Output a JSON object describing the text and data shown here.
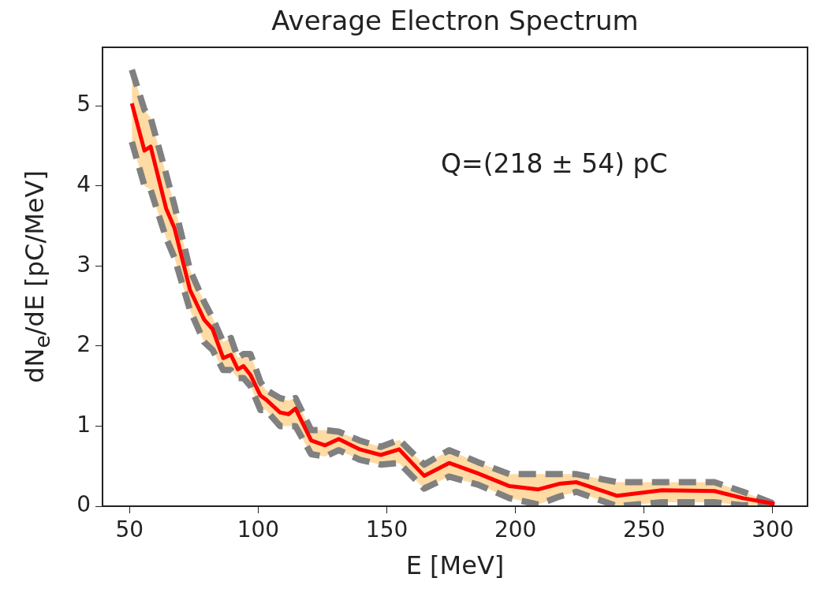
{
  "chart_data": {
    "type": "line",
    "title": "Average Electron Spectrum",
    "xlabel": "E [MeV]",
    "ylabel": "dN$_{e}$/dE [pC/MeV]",
    "annotations": [
      "Q=(218 ± 54) pC"
    ],
    "xlim": [
      39.5,
      313.5
    ],
    "xticks": [
      50,
      100,
      150,
      200,
      250,
      300
    ],
    "ylim": [
      0,
      5.73
    ],
    "yticks": [
      0,
      1,
      2,
      3,
      4,
      5
    ],
    "grid": false,
    "legend": false,
    "marker": "none",
    "line_style": "solid",
    "series": [
      {
        "color": "#ff0000",
        "x": [
          50.9,
          55.8,
          58.2,
          64.2,
          67.5,
          73.5,
          79.0,
          82.3,
          86.4,
          89.4,
          92.1,
          94.3,
          97.0,
          100.9,
          103.1,
          108.5,
          111.8,
          114.5,
          120.6,
          126.0,
          131.3,
          139.5,
          147.6,
          154.8,
          164.5,
          174.2,
          185.4,
          197.7,
          208.9,
          217.0,
          223.7,
          239.5,
          256.9,
          277.3,
          288.5,
          300.7
        ],
        "values": [
          5.03,
          4.44,
          4.49,
          3.72,
          3.47,
          2.7,
          2.33,
          2.21,
          1.85,
          1.89,
          1.71,
          1.75,
          1.64,
          1.38,
          1.33,
          1.17,
          1.15,
          1.22,
          0.82,
          0.76,
          0.84,
          0.71,
          0.64,
          0.71,
          0.38,
          0.54,
          0.41,
          0.25,
          0.21,
          0.28,
          0.3,
          0.13,
          0.2,
          0.19,
          0.1,
          0.03
        ],
        "upper": [
          5.45,
          4.95,
          4.85,
          4.15,
          3.75,
          2.95,
          2.55,
          2.35,
          2.05,
          2.1,
          1.85,
          1.9,
          1.9,
          1.55,
          1.45,
          1.35,
          1.32,
          1.35,
          0.95,
          0.95,
          0.93,
          0.82,
          0.74,
          0.83,
          0.52,
          0.7,
          0.55,
          0.4,
          0.4,
          0.4,
          0.4,
          0.3,
          0.3,
          0.3,
          0.18,
          0.03
        ],
        "lower": [
          4.55,
          4.0,
          3.95,
          3.35,
          3.1,
          2.45,
          2.05,
          1.95,
          1.7,
          1.7,
          1.6,
          1.6,
          1.5,
          1.2,
          1.2,
          1.0,
          1.0,
          1.0,
          0.65,
          0.62,
          0.7,
          0.58,
          0.52,
          0.54,
          0.22,
          0.37,
          0.27,
          0.1,
          0.02,
          0.12,
          0.18,
          0.0,
          0.05,
          0.05,
          0.01,
          0.02
        ]
      },
      {
        "color": "#808080",
        "line_style": "dashed",
        "x": [
          50.9,
          55.8,
          58.2,
          64.2,
          67.5,
          73.5,
          79.0,
          82.3,
          86.4,
          89.4,
          92.1,
          94.3,
          97.0,
          100.9,
          103.1,
          108.5,
          111.8,
          114.5,
          120.6,
          126.0,
          131.3,
          139.5,
          147.6,
          154.8,
          164.5,
          174.2,
          185.4,
          197.7,
          208.9,
          217.0,
          223.7,
          239.5,
          256.9,
          277.3,
          288.5,
          300.7
        ],
        "values": [
          5.45,
          4.95,
          4.85,
          4.15,
          3.75,
          2.95,
          2.55,
          2.35,
          2.05,
          2.1,
          1.85,
          1.9,
          1.9,
          1.55,
          1.45,
          1.35,
          1.32,
          1.35,
          0.95,
          0.95,
          0.93,
          0.82,
          0.74,
          0.83,
          0.52,
          0.7,
          0.55,
          0.4,
          0.4,
          0.4,
          0.4,
          0.3,
          0.3,
          0.3,
          0.18,
          0.03
        ]
      },
      {
        "color": "#808080",
        "line_style": "dashed",
        "x": [
          50.9,
          55.8,
          58.2,
          64.2,
          67.5,
          73.5,
          79.0,
          82.3,
          86.4,
          89.4,
          92.1,
          94.3,
          97.0,
          100.9,
          103.1,
          108.5,
          111.8,
          114.5,
          120.6,
          126.0,
          131.3,
          139.5,
          147.6,
          154.8,
          164.5,
          174.2,
          185.4,
          197.7,
          208.9,
          217.0,
          223.7,
          239.5,
          256.9,
          277.3,
          288.5,
          300.7
        ],
        "values": [
          4.55,
          4.0,
          3.95,
          3.35,
          3.1,
          2.45,
          2.05,
          1.95,
          1.7,
          1.7,
          1.6,
          1.6,
          1.5,
          1.2,
          1.2,
          1.0,
          1.0,
          1.0,
          0.65,
          0.62,
          0.7,
          0.58,
          0.52,
          0.54,
          0.22,
          0.37,
          0.27,
          0.1,
          0.02,
          0.12,
          0.18,
          0.0,
          0.05,
          0.05,
          0.01,
          0.02
        ]
      }
    ]
  }
}
